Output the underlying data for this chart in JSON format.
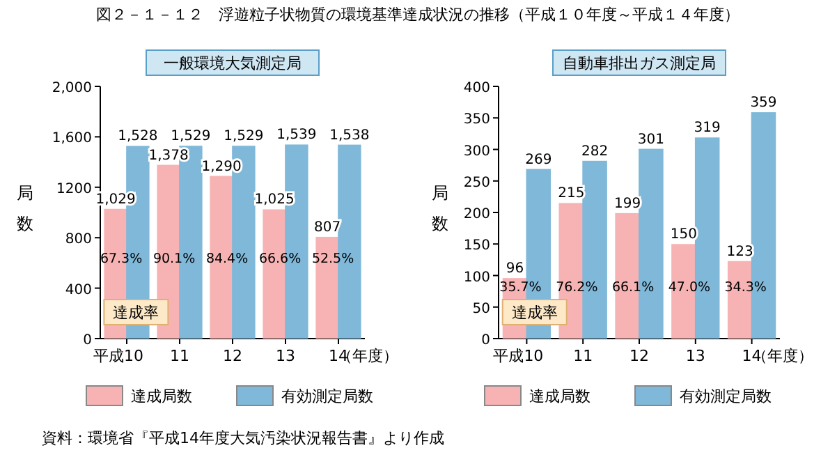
{
  "chart_data": [
    {
      "type": "bar",
      "title": "図２－１－１２　浮遊粒子状物質の環境基準達成状況の推移（平成１０年度～平成１４年度）",
      "subtitle": "一般環境大気測定局",
      "ylabel": "局数",
      "xlabel": "（年度）",
      "categories": [
        "平成10",
        "11",
        "12",
        "13",
        "14"
      ],
      "series": [
        {
          "name": "達成局数",
          "color": "#f7b3b3",
          "values": [
            1029,
            1378,
            1290,
            1025,
            807
          ],
          "value_labels": [
            "1,029",
            "1,378",
            "1,290",
            "1,025",
            "807"
          ]
        },
        {
          "name": "有効測定局数",
          "color": "#7fb8d9",
          "values": [
            1528,
            1529,
            1529,
            1539,
            1538
          ],
          "value_labels": [
            "1,528",
            "1,529",
            "1,529",
            "1,539",
            "1,538"
          ]
        }
      ],
      "ylim": [
        0,
        2000
      ],
      "yticks": [
        0,
        400,
        800,
        1200,
        {
          "value": 1600,
          "label": "1,600"
        },
        {
          "value": 2000,
          "label": "2,000"
        }
      ],
      "legend": "bottom",
      "annotations": [
        {
          "text": "67.3%",
          "x": "平成10",
          "y": 600
        },
        {
          "text": "90.1%",
          "x": "11",
          "y": 600
        },
        {
          "text": "84.4%",
          "x": "12",
          "y": 600
        },
        {
          "text": "66.6%",
          "x": "13",
          "y": 600
        },
        {
          "text": "52.5%",
          "x": "14",
          "y": 600
        },
        "達成率",
        "資料：環境省『平成14年度大気汚染状況報告書』より作成"
      ]
    },
    {
      "type": "bar",
      "subtitle": "自動車排出ガス測定局",
      "ylabel": "局数",
      "xlabel": "（年度）",
      "categories": [
        "平成10",
        "11",
        "12",
        "13",
        "14"
      ],
      "series": [
        {
          "name": "達成局数",
          "color": "#f7b3b3",
          "values": [
            96,
            215,
            199,
            150,
            123
          ]
        },
        {
          "name": "有効測定局数",
          "color": "#7fb8d9",
          "values": [
            269,
            282,
            301,
            319,
            359
          ]
        }
      ],
      "data_labels": true,
      "ylim": [
        0,
        400
      ],
      "yticks": [
        0,
        50,
        100,
        150,
        200,
        250,
        300,
        350,
        400
      ],
      "legend": "bottom",
      "annotations": [
        {
          "text": "35.7%",
          "x": "平成10",
          "y": 75
        },
        {
          "text": "76.2%",
          "x": "11",
          "y": 75
        },
        {
          "text": "66.1%",
          "x": "12",
          "y": 75
        },
        {
          "text": "47.0%",
          "x": "13",
          "y": 75
        },
        {
          "text": "34.3%",
          "x": "14",
          "y": 75
        },
        "達成率"
      ]
    }
  ]
}
